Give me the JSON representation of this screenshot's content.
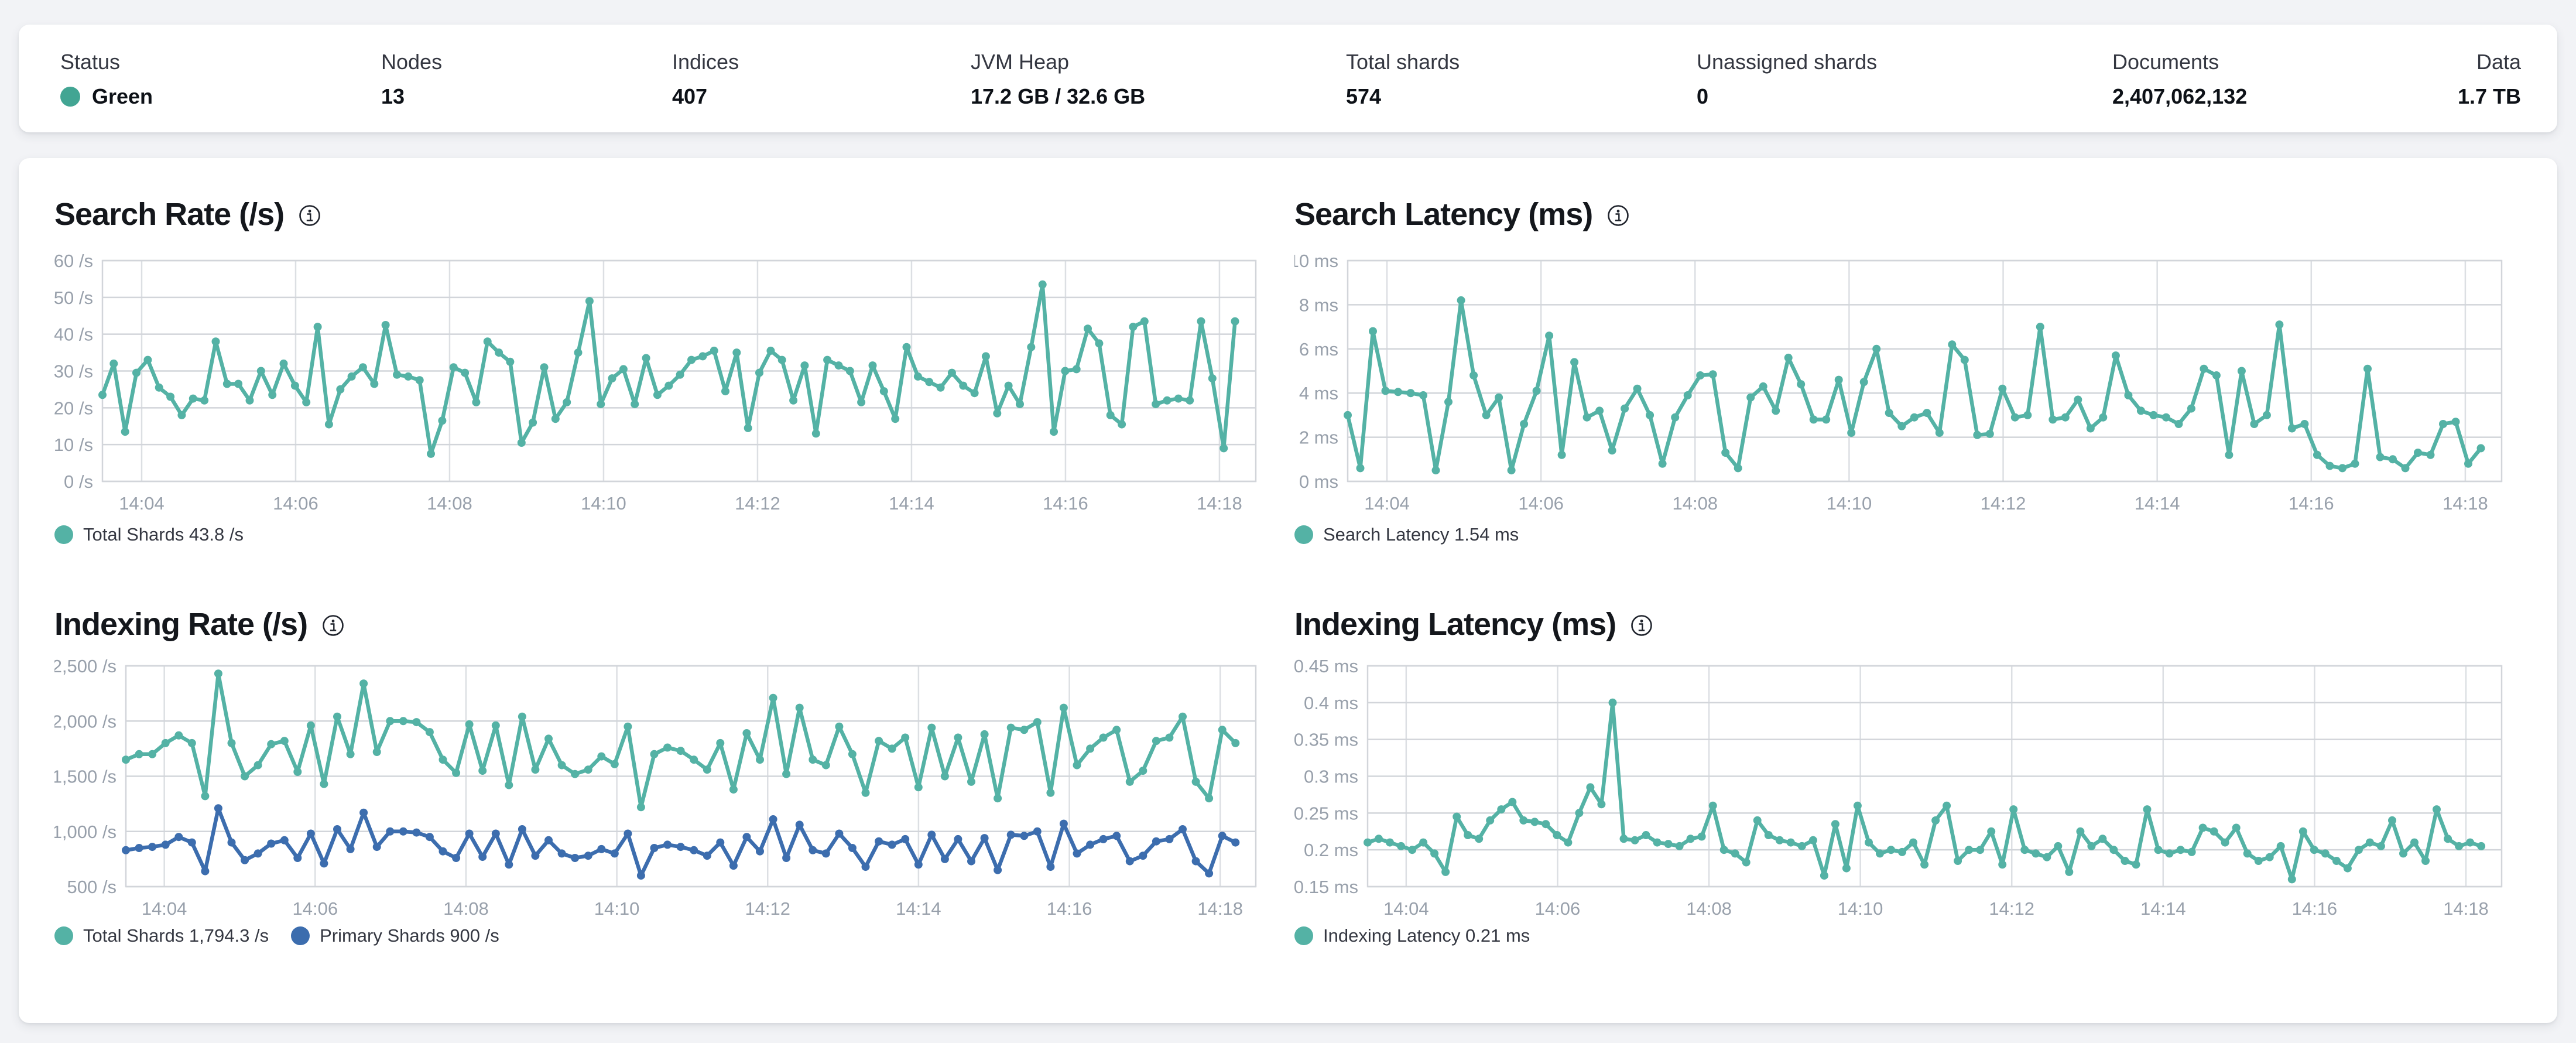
{
  "colors": {
    "teal": "#54b2a5",
    "blue": "#3c6dae",
    "status_green": "#42a593",
    "axis_text": "#98a0ab",
    "grid_h": "#d2d5da",
    "grid_v": "#dcdfe3",
    "title_text": "#14171c",
    "label_text": "#343741",
    "value_text": "#0d1117"
  },
  "stats": {
    "items": [
      {
        "label": "Status",
        "value": "Green",
        "has_dot": true,
        "dot_color": "#42a593"
      },
      {
        "label": "Nodes",
        "value": "13"
      },
      {
        "label": "Indices",
        "value": "407"
      },
      {
        "label": "JVM Heap",
        "value": "17.2 GB / 32.6 GB"
      },
      {
        "label": "Total shards",
        "value": "574"
      },
      {
        "label": "Unassigned shards",
        "value": "0"
      },
      {
        "label": "Documents",
        "value": "2,407,062,132"
      },
      {
        "label": "Data",
        "value": "1.7 TB"
      }
    ]
  },
  "chart_data": [
    {
      "id": "search-rate",
      "type": "line",
      "title": "Search Rate (/s)",
      "ylabel": "/s",
      "ylim": [
        0,
        60
      ],
      "grid": true,
      "legend_position": "bottom-left",
      "yticks": [
        {
          "v": 60,
          "label": "60 /s"
        },
        {
          "v": 50,
          "label": "50 /s"
        },
        {
          "v": 40,
          "label": "40 /s"
        },
        {
          "v": 30,
          "label": "30 /s"
        },
        {
          "v": 20,
          "label": "20 /s"
        },
        {
          "v": 10,
          "label": "10 /s"
        },
        {
          "v": 0,
          "label": "0 /s"
        }
      ],
      "xticks": [
        "14:04",
        "14:06",
        "14:08",
        "14:10",
        "14:12",
        "14:14",
        "14:16",
        "14:18"
      ],
      "series": [
        {
          "name": "Total Shards",
          "legend": "Total Shards 43.8 /s",
          "color": "#54b2a5",
          "values": [
            23.5,
            32,
            13.5,
            29.5,
            33,
            25.5,
            23,
            18,
            22.5,
            22,
            38,
            26.5,
            26.5,
            22,
            30,
            23.5,
            32,
            26,
            21.5,
            42,
            15.5,
            25,
            28.5,
            31,
            26.5,
            42.5,
            29,
            28.5,
            27.5,
            7.5,
            16.5,
            31,
            29.5,
            21.5,
            38,
            35,
            32.5,
            10.5,
            16,
            31,
            17,
            21.5,
            35,
            49,
            21,
            28,
            30.5,
            21,
            33.5,
            23.5,
            26,
            29,
            33,
            34,
            35.5,
            24.5,
            35,
            14.5,
            29.5,
            35.5,
            33,
            22,
            31.5,
            13,
            33,
            31.5,
            30,
            21.5,
            31.5,
            24.5,
            17,
            36.5,
            28.5,
            27,
            25.5,
            29.5,
            26,
            24,
            34,
            18.5,
            26,
            21,
            36.5,
            53.5,
            13.5,
            30,
            30.5,
            41.5,
            37.5,
            18,
            15.5,
            42,
            43.5,
            21,
            22,
            22.5,
            22,
            43.5,
            28,
            9,
            43.5
          ]
        }
      ]
    },
    {
      "id": "search-latency",
      "type": "line",
      "title": "Search Latency (ms)",
      "ylabel": "ms",
      "ylim": [
        0,
        10
      ],
      "grid": true,
      "legend_position": "bottom-left",
      "yticks": [
        {
          "v": 10,
          "label": "10 ms"
        },
        {
          "v": 8,
          "label": "8 ms"
        },
        {
          "v": 6,
          "label": "6 ms"
        },
        {
          "v": 4,
          "label": "4 ms"
        },
        {
          "v": 2,
          "label": "2 ms"
        },
        {
          "v": 0,
          "label": "0 ms"
        }
      ],
      "xticks": [
        "14:04",
        "14:06",
        "14:08",
        "14:10",
        "14:12",
        "14:14",
        "14:16",
        "14:18"
      ],
      "series": [
        {
          "name": "Search Latency",
          "legend": "Search Latency 1.54 ms",
          "color": "#54b2a5",
          "values": [
            3,
            0.6,
            6.8,
            4.1,
            4.05,
            4,
            3.9,
            0.5,
            3.6,
            8.2,
            4.8,
            3,
            3.8,
            0.5,
            2.6,
            4.1,
            6.6,
            1.2,
            5.4,
            2.9,
            3.2,
            1.4,
            3.3,
            4.2,
            3,
            0.8,
            2.9,
            3.9,
            4.8,
            4.85,
            1.3,
            0.6,
            3.8,
            4.3,
            3.2,
            5.6,
            4.4,
            2.8,
            2.8,
            4.6,
            2.2,
            4.5,
            6,
            3.1,
            2.5,
            2.9,
            3.1,
            2.2,
            6.2,
            5.5,
            2.1,
            2.15,
            4.2,
            2.9,
            3,
            7,
            2.8,
            2.9,
            3.7,
            2.4,
            2.9,
            5.7,
            3.9,
            3.2,
            3,
            2.9,
            2.6,
            3.3,
            5.1,
            4.8,
            1.2,
            5,
            2.6,
            3,
            7.1,
            2.4,
            2.6,
            1.2,
            0.7,
            0.6,
            0.8,
            5.1,
            1.1,
            1,
            0.6,
            1.3,
            1.2,
            2.6,
            2.7,
            0.8,
            1.5
          ]
        }
      ]
    },
    {
      "id": "indexing-rate",
      "type": "line",
      "title": "Indexing Rate (/s)",
      "ylabel": "/s",
      "ylim": [
        500,
        2500
      ],
      "grid": true,
      "legend_position": "bottom-left",
      "yticks": [
        {
          "v": 2500,
          "label": "2,500 /s"
        },
        {
          "v": 2000,
          "label": "2,000 /s"
        },
        {
          "v": 1500,
          "label": "1,500 /s"
        },
        {
          "v": 1000,
          "label": "1,000 /s"
        },
        {
          "v": 500,
          "label": "500 /s"
        }
      ],
      "xticks": [
        "14:04",
        "14:06",
        "14:08",
        "14:10",
        "14:12",
        "14:14",
        "14:16",
        "14:18"
      ],
      "series": [
        {
          "name": "Total Shards",
          "legend": "Total Shards 1,794.3 /s",
          "color": "#54b2a5",
          "values": [
            1650,
            1700,
            1700,
            1800,
            1870,
            1800,
            1320,
            2430,
            1800,
            1500,
            1600,
            1790,
            1820,
            1540,
            1960,
            1430,
            2040,
            1700,
            2340,
            1720,
            2000,
            2000,
            1990,
            1900,
            1650,
            1530,
            1970,
            1550,
            1960,
            1420,
            2040,
            1560,
            1840,
            1600,
            1520,
            1560,
            1680,
            1610,
            1950,
            1220,
            1700,
            1760,
            1730,
            1650,
            1560,
            1800,
            1380,
            1890,
            1650,
            2210,
            1520,
            2120,
            1650,
            1600,
            1950,
            1700,
            1350,
            1820,
            1750,
            1850,
            1400,
            1940,
            1500,
            1850,
            1450,
            1880,
            1300,
            1940,
            1920,
            1990,
            1350,
            2120,
            1600,
            1750,
            1850,
            1920,
            1450,
            1550,
            1820,
            1850,
            2040,
            1450,
            1300,
            1920,
            1800
          ]
        },
        {
          "name": "Primary Shards",
          "legend": "Primary Shards 900 /s",
          "color": "#3c6dae",
          "values": [
            830,
            850,
            860,
            880,
            950,
            900,
            640,
            1210,
            900,
            740,
            800,
            890,
            920,
            760,
            980,
            710,
            1020,
            840,
            1170,
            860,
            1000,
            1000,
            990,
            950,
            820,
            760,
            980,
            770,
            980,
            700,
            1020,
            780,
            920,
            800,
            760,
            780,
            840,
            800,
            980,
            600,
            850,
            880,
            860,
            830,
            780,
            900,
            690,
            950,
            820,
            1110,
            760,
            1060,
            830,
            800,
            980,
            850,
            680,
            910,
            880,
            930,
            700,
            970,
            750,
            930,
            730,
            940,
            650,
            970,
            960,
            1000,
            680,
            1070,
            800,
            880,
            930,
            960,
            730,
            780,
            910,
            930,
            1020,
            730,
            620,
            960,
            900
          ]
        }
      ]
    },
    {
      "id": "indexing-latency",
      "type": "line",
      "title": "Indexing Latency (ms)",
      "ylabel": "ms",
      "ylim": [
        0.15,
        0.45
      ],
      "grid": true,
      "legend_position": "bottom-left",
      "yticks": [
        {
          "v": 0.45,
          "label": "0.45 ms"
        },
        {
          "v": 0.4,
          "label": "0.4 ms"
        },
        {
          "v": 0.35,
          "label": "0.35 ms"
        },
        {
          "v": 0.3,
          "label": "0.3 ms"
        },
        {
          "v": 0.25,
          "label": "0.25 ms"
        },
        {
          "v": 0.2,
          "label": "0.2 ms"
        },
        {
          "v": 0.15,
          "label": "0.15 ms"
        }
      ],
      "xticks": [
        "14:04",
        "14:06",
        "14:08",
        "14:10",
        "14:12",
        "14:14",
        "14:16",
        "14:18"
      ],
      "series": [
        {
          "name": "Indexing Latency",
          "legend": "Indexing Latency 0.21 ms",
          "color": "#54b2a5",
          "values": [
            0.21,
            0.215,
            0.21,
            0.205,
            0.2,
            0.21,
            0.195,
            0.17,
            0.245,
            0.22,
            0.215,
            0.24,
            0.255,
            0.265,
            0.24,
            0.238,
            0.235,
            0.22,
            0.21,
            0.25,
            0.285,
            0.262,
            0.4,
            0.215,
            0.213,
            0.22,
            0.21,
            0.208,
            0.205,
            0.215,
            0.218,
            0.26,
            0.2,
            0.195,
            0.183,
            0.24,
            0.22,
            0.213,
            0.21,
            0.205,
            0.213,
            0.165,
            0.235,
            0.175,
            0.26,
            0.21,
            0.195,
            0.2,
            0.197,
            0.21,
            0.18,
            0.24,
            0.26,
            0.185,
            0.2,
            0.2,
            0.225,
            0.18,
            0.255,
            0.2,
            0.195,
            0.19,
            0.205,
            0.17,
            0.225,
            0.205,
            0.215,
            0.2,
            0.185,
            0.18,
            0.255,
            0.2,
            0.195,
            0.2,
            0.197,
            0.23,
            0.225,
            0.21,
            0.23,
            0.195,
            0.185,
            0.19,
            0.205,
            0.16,
            0.225,
            0.2,
            0.195,
            0.185,
            0.175,
            0.2,
            0.21,
            0.205,
            0.24,
            0.195,
            0.21,
            0.185,
            0.255,
            0.215,
            0.205,
            0.21,
            0.205
          ]
        }
      ]
    }
  ]
}
